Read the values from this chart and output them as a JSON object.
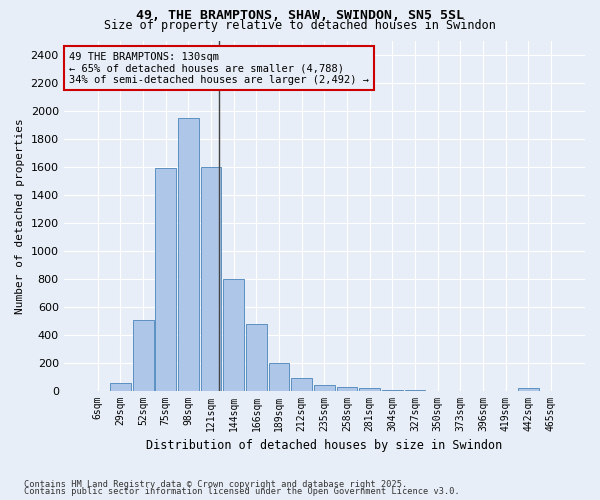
{
  "title1": "49, THE BRAMPTONS, SHAW, SWINDON, SN5 5SL",
  "title2": "Size of property relative to detached houses in Swindon",
  "xlabel": "Distribution of detached houses by size in Swindon",
  "ylabel": "Number of detached properties",
  "footer1": "Contains HM Land Registry data © Crown copyright and database right 2025.",
  "footer2": "Contains public sector information licensed under the Open Government Licence v3.0.",
  "bar_labels": [
    "6sqm",
    "29sqm",
    "52sqm",
    "75sqm",
    "98sqm",
    "121sqm",
    "144sqm",
    "166sqm",
    "189sqm",
    "212sqm",
    "235sqm",
    "258sqm",
    "281sqm",
    "304sqm",
    "327sqm",
    "350sqm",
    "373sqm",
    "396sqm",
    "419sqm",
    "442sqm",
    "465sqm"
  ],
  "bar_values": [
    0,
    55,
    510,
    1590,
    1950,
    1600,
    800,
    480,
    200,
    90,
    40,
    30,
    20,
    10,
    10,
    0,
    0,
    0,
    0,
    25,
    0
  ],
  "bar_color": "#aec6e8",
  "bar_edge_color": "#5b90c2",
  "bg_color": "#e8eef7",
  "grid_color": "#ffffff",
  "ylim": [
    0,
    2500
  ],
  "yticks": [
    0,
    200,
    400,
    600,
    800,
    1000,
    1200,
    1400,
    1600,
    1800,
    2000,
    2200,
    2400
  ],
  "property_line_x": 5.35,
  "annotation_text": "49 THE BRAMPTONS: 130sqm\n← 65% of detached houses are smaller (4,788)\n34% of semi-detached houses are larger (2,492) →",
  "annotation_box_color": "#cc0000",
  "vline_color": "#444444"
}
